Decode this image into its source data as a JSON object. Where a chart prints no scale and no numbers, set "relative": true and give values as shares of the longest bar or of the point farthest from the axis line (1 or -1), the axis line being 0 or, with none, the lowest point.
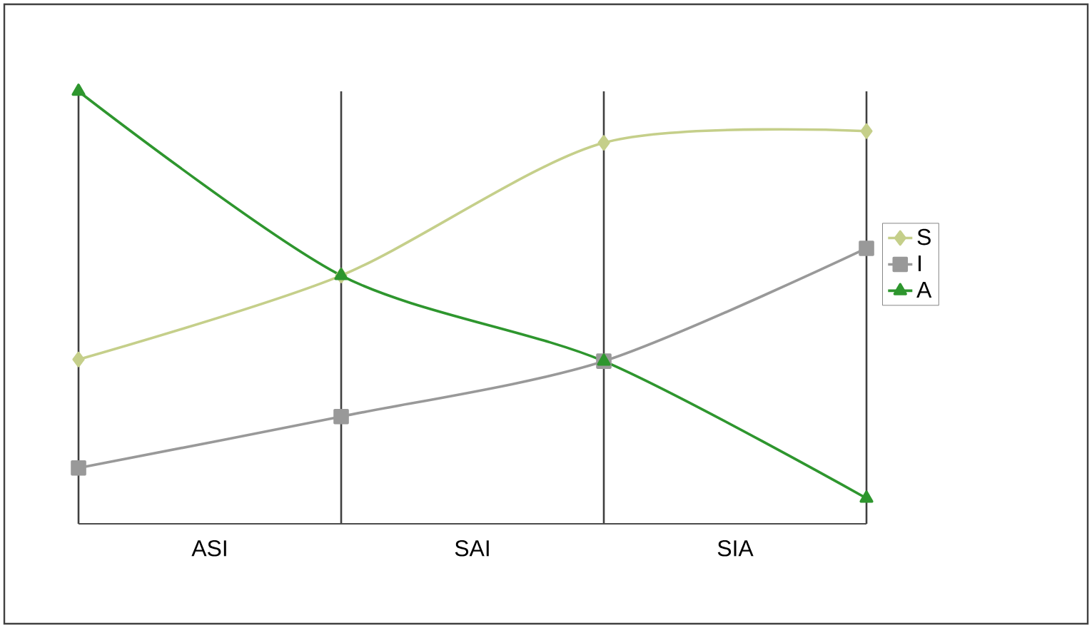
{
  "chart_data": {
    "type": "line",
    "relative": true,
    "categories": [
      null,
      null,
      null,
      null
    ],
    "annotations": [
      "ASI",
      "SAI",
      "SIA"
    ],
    "series": [
      {
        "name": "S",
        "color": "#c5cf8a",
        "marker": "diamond",
        "values": [
          0.38,
          0.574,
          0.881,
          0.908
        ]
      },
      {
        "name": "I",
        "color": "#999999",
        "marker": "square",
        "values": [
          0.129,
          0.248,
          0.376,
          0.637
        ]
      },
      {
        "name": "A",
        "color": "#2e962e",
        "marker": "triangle",
        "values": [
          1,
          0.574,
          0.376,
          0.059
        ]
      }
    ],
    "grid": "x",
    "legend": "right",
    "line_style": "solid"
  }
}
